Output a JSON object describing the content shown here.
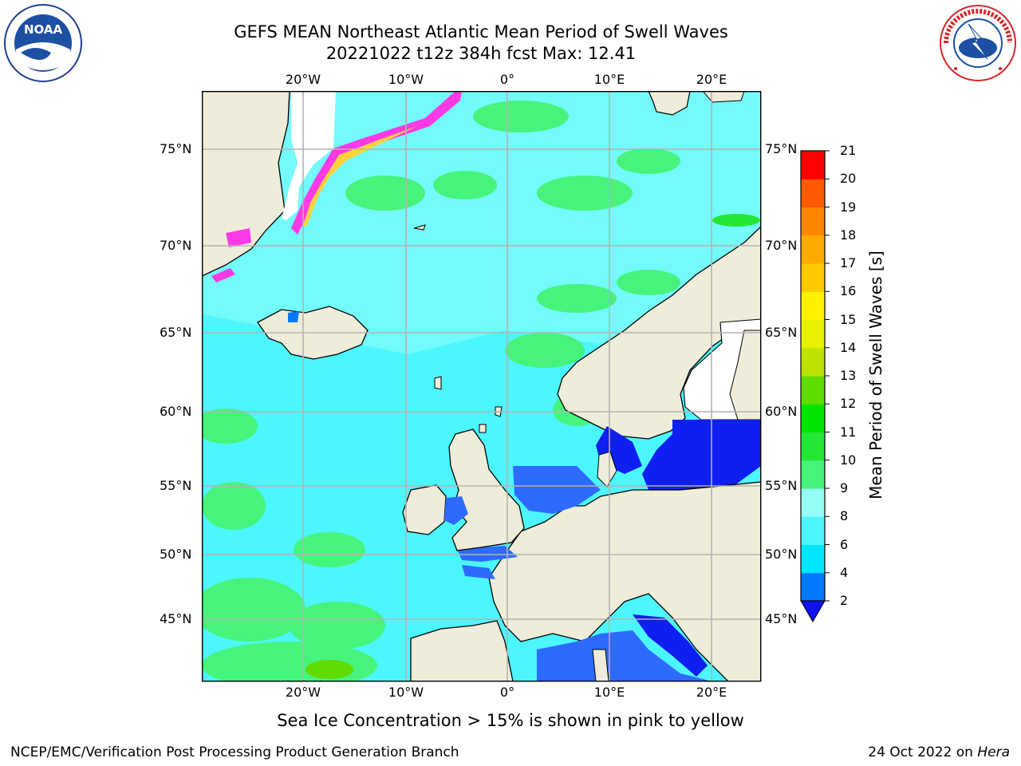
{
  "title": {
    "line1": "GEFS MEAN Northeast Atlantic Mean Period of Swell Waves",
    "line2": "20221022 t12z 384h fcst   Max: 12.41"
  },
  "logos": {
    "left": {
      "name": "noaa-logo",
      "text": "NOAA",
      "ring_text": "NATIONAL OCEANIC AND ATMOSPHERIC ADMINISTRATION · U.S. DEPARTMENT OF COMMERCE"
    },
    "right": {
      "name": "nws-logo",
      "ring_text": "NATIONAL WEATHER SERVICE"
    }
  },
  "map": {
    "lon_labels": [
      "20°W",
      "10°W",
      "0°",
      "10°E",
      "20°E"
    ],
    "lat_labels": [
      "75°N",
      "70°N",
      "65°N",
      "60°N",
      "55°N",
      "50°N",
      "45°N"
    ],
    "colors": {
      "land": "#efedd9",
      "ocean_base": "#4cf6ff",
      "ocean_light": "#93fdf6",
      "ocean_green": "#46f37b",
      "shelf_blue": "#2f6aff",
      "deep_blue": "#0f1ff1",
      "sea_ice_white": "#ffffff",
      "sea_ice_pink": "#ff39e5",
      "sea_ice_yellow": "#ffd23c",
      "grid": "#b3b3b3"
    }
  },
  "colorbar": {
    "label": "Mean Period of Swell Waves [s]",
    "ticks": [
      "2",
      "4",
      "6",
      "8",
      "9",
      "10",
      "11",
      "12",
      "13",
      "14",
      "15",
      "16",
      "17",
      "18",
      "19",
      "20",
      "21"
    ],
    "colors": [
      "#0079ff",
      "#00e6ff",
      "#4cf6ff",
      "#93fdf6",
      "#46f37b",
      "#24e634",
      "#00e600",
      "#60dc00",
      "#bde200",
      "#e6f000",
      "#fff000",
      "#ffc900",
      "#ffaa00",
      "#ff8600",
      "#ff5a00",
      "#ff0000"
    ],
    "extend_color": "#0f10f0"
  },
  "caption": "Sea Ice Concentration > 15% is shown in pink to yellow",
  "footer": {
    "left": "NCEP/EMC/Verification Post Processing Product Generation Branch",
    "right_prefix": "24 Oct 2022 on ",
    "right_host": "Hera"
  }
}
